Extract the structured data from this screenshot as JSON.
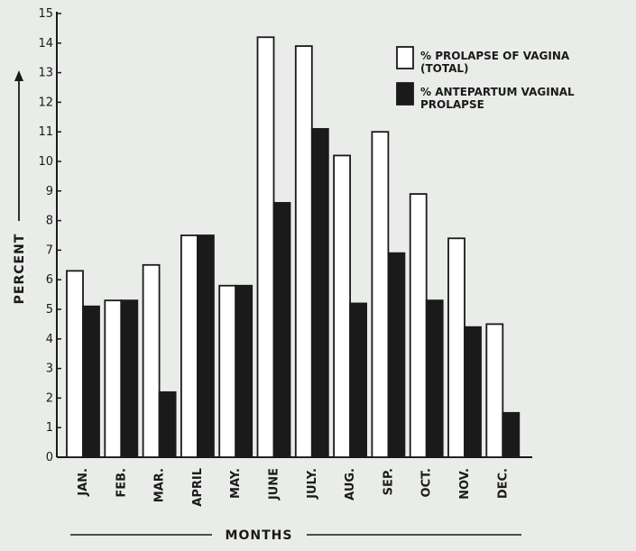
{
  "chart_data": {
    "type": "bar",
    "categories": [
      "JAN.",
      "FEB.",
      "MAR.",
      "APRIL",
      "MAY.",
      "JUNE",
      "JULY.",
      "AUG.",
      "SEP.",
      "OCT.",
      "NOV.",
      "DEC."
    ],
    "series": [
      {
        "name": "% PROLAPSE OF VAGINA (TOTAL)",
        "legend_lines": [
          "% PROLAPSE OF VAGINA",
          "(TOTAL)"
        ],
        "fill": "#ffffff",
        "values": [
          6.3,
          5.3,
          6.5,
          7.5,
          5.8,
          14.2,
          13.9,
          10.2,
          11.0,
          8.9,
          7.4,
          4.5
        ]
      },
      {
        "name": "% ANTEPARTUM VAGINAL PROLAPSE",
        "legend_lines": [
          "% ANTEPARTUM VAGINAL",
          "PROLAPSE"
        ],
        "fill": "#1a1a1a",
        "values": [
          5.1,
          5.3,
          2.2,
          7.5,
          5.8,
          8.6,
          11.1,
          5.2,
          6.9,
          5.3,
          4.4,
          1.5
        ]
      }
    ],
    "title": "",
    "xlabel": "MONTHS",
    "ylabel": "PERCENT",
    "ylim": [
      0,
      15
    ],
    "yticks": [
      0,
      1,
      2,
      3,
      4,
      5,
      6,
      7,
      8,
      9,
      10,
      11,
      12,
      13,
      14,
      15
    ],
    "grid": false,
    "legend_position": "top-right"
  }
}
